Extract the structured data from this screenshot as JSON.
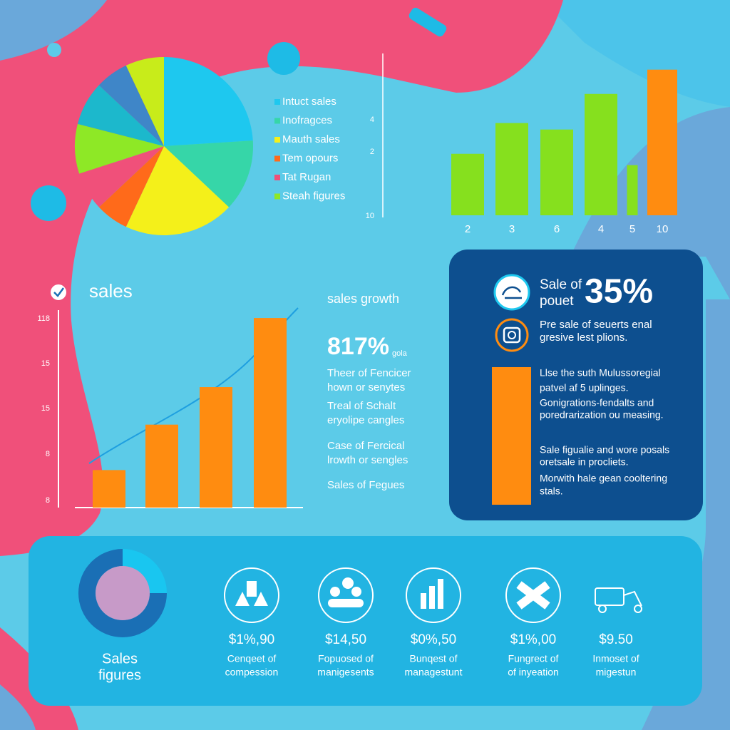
{
  "chart_data": [
    {
      "type": "pie",
      "categories": [
        "Intuct sales",
        "Inofragces",
        "Mauth sales",
        "Tem opours",
        "Tat Rugan",
        "Steah figures",
        null,
        null,
        null
      ],
      "values": [
        24,
        13,
        20,
        6,
        7,
        9,
        8,
        6,
        7
      ],
      "colors": [
        "#1ec8ef",
        "#36d6a8",
        "#f4f01a",
        "#ff6a1a",
        "#f0507a",
        "#8ee826",
        "#1cb8cc",
        "#3f86c8",
        "#c8ec1a"
      ]
    },
    {
      "type": "bar",
      "categories": [
        "2",
        "3",
        "6",
        "4",
        "5",
        "10"
      ],
      "values": [
        38,
        57,
        53,
        75,
        31,
        90
      ],
      "colors": [
        "#86e01e",
        "#86e01e",
        "#86e01e",
        "#86e01e",
        "#86e01e",
        "#ff8c10"
      ],
      "ylim": [
        0,
        100
      ],
      "axis_labels": [
        "4",
        "2",
        "10"
      ]
    },
    {
      "type": "bar",
      "title": "sales",
      "values": [
        19,
        42,
        61,
        96
      ],
      "color": "#ff8c10",
      "ylim": [
        0,
        100
      ],
      "axis_labels": [
        "118",
        "15",
        "15",
        "8",
        "8"
      ]
    },
    {
      "type": "donut",
      "values": [
        25,
        75
      ],
      "colors": [
        "#19c6f0",
        "#1a6fb5"
      ],
      "label": [
        "Sales",
        "figures"
      ]
    }
  ],
  "growth": {
    "title": "sales growth",
    "figure": "817%",
    "figure_note": "gola",
    "lines": [
      "Theer of Fencicer",
      "hown or senytes",
      "Treal of Schalt",
      "eryolipe cangles",
      "Case of Fercical",
      "lrowth or sengles",
      "Sales of Fegues"
    ]
  },
  "panel": {
    "heading": [
      "Sale of",
      "pouet"
    ],
    "figure": "35%",
    "intro": [
      "Pre sale of seuerts enal",
      "gresive lest plions."
    ],
    "body": [
      "Llse the suth Mulussoregial",
      "patvel af 5 uplinges.",
      "Gonigrations-fendalts and",
      "poredrarization ou measing.",
      "Sale figualie and wore posals",
      "oretsale in procliets.",
      "Morwith hale gean cooltering",
      "stals."
    ]
  },
  "stats": [
    {
      "value": "$1%,90",
      "label": [
        "Cenqeet of",
        "compession"
      ]
    },
    {
      "value": "$14,50",
      "label": [
        "Fopuosed of",
        "manigesents"
      ]
    },
    {
      "value": "$0%,50",
      "label": [
        "Bunqest of",
        "managestunt"
      ]
    },
    {
      "value": "$1%,00",
      "label": [
        "Fungrect of",
        "of inyeation"
      ]
    },
    {
      "value": "$9.50",
      "label": [
        "Inmoset of",
        "migestun"
      ]
    }
  ]
}
